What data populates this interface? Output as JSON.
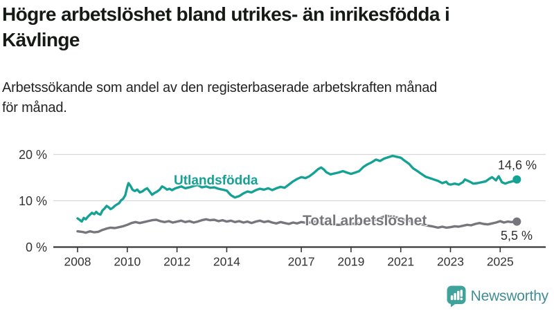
{
  "header": {
    "title_lines": [
      "Högre arbetslöshet bland utrikes- än inrikesfödda i",
      "Kävlinge"
    ],
    "subtitle_lines": [
      "Arbetssökande som andel av den registerbaserade arbetskraften månad",
      "för månad."
    ]
  },
  "chart_data": {
    "type": "line",
    "unit": "%",
    "title": "Högre arbetslöshet bland utrikes- än inrikesfödda i Kävlinge",
    "subtitle": "Arbetssökande som andel av den registerbaserade arbetskraften månad för månad.",
    "xlim": [
      2007.5,
      2026.1
    ],
    "ylim": [
      0,
      21.5
    ],
    "grid": true,
    "y_ticks": [
      {
        "label": "0 %",
        "value": 0
      },
      {
        "label": "10 %",
        "value": 10
      },
      {
        "label": "20 %",
        "value": 20
      }
    ],
    "x_ticks": [
      {
        "label": "2008",
        "year": 2008
      },
      {
        "label": "2010",
        "year": 2010
      },
      {
        "label": "2012",
        "year": 2012
      },
      {
        "label": "2014",
        "year": 2014
      },
      {
        "label": "2017",
        "year": 2017
      },
      {
        "label": "2019",
        "year": 2019
      },
      {
        "label": "2021",
        "year": 2021
      },
      {
        "label": "2023",
        "year": 2023
      },
      {
        "label": "2025",
        "year": 2025
      }
    ],
    "series": [
      {
        "name": "Utlandsfödda",
        "color": "#16a195",
        "end_label": "14,6 %",
        "end_value": 14.6,
        "points": [
          [
            2008.0,
            6.2
          ],
          [
            2008.08,
            5.9
          ],
          [
            2008.17,
            5.5
          ],
          [
            2008.25,
            6.3
          ],
          [
            2008.33,
            6.0
          ],
          [
            2008.42,
            6.6
          ],
          [
            2008.5,
            7.0
          ],
          [
            2008.58,
            7.4
          ],
          [
            2008.67,
            7.1
          ],
          [
            2008.75,
            7.6
          ],
          [
            2008.83,
            7.2
          ],
          [
            2008.92,
            7.0
          ],
          [
            2009.0,
            7.9
          ],
          [
            2009.08,
            8.3
          ],
          [
            2009.17,
            8.9
          ],
          [
            2009.25,
            8.6
          ],
          [
            2009.33,
            8.2
          ],
          [
            2009.42,
            8.5
          ],
          [
            2009.5,
            8.9
          ],
          [
            2009.58,
            9.2
          ],
          [
            2009.67,
            9.5
          ],
          [
            2009.75,
            10.1
          ],
          [
            2009.83,
            10.4
          ],
          [
            2009.92,
            11.2
          ],
          [
            2010.0,
            13.0
          ],
          [
            2010.05,
            13.8
          ],
          [
            2010.13,
            13.2
          ],
          [
            2010.21,
            12.4
          ],
          [
            2010.3,
            12.1
          ],
          [
            2010.4,
            12.4
          ],
          [
            2010.5,
            11.8
          ],
          [
            2010.6,
            12.0
          ],
          [
            2010.7,
            12.4
          ],
          [
            2010.8,
            12.7
          ],
          [
            2010.9,
            12.0
          ],
          [
            2011.0,
            11.3
          ],
          [
            2011.1,
            11.7
          ],
          [
            2011.2,
            12.0
          ],
          [
            2011.3,
            12.4
          ],
          [
            2011.4,
            13.1
          ],
          [
            2011.5,
            12.8
          ],
          [
            2011.6,
            12.4
          ],
          [
            2011.7,
            12.6
          ],
          [
            2011.8,
            12.3
          ],
          [
            2011.9,
            12.6
          ],
          [
            2012.0,
            12.8
          ],
          [
            2012.17,
            13.1
          ],
          [
            2012.33,
            12.7
          ],
          [
            2012.5,
            12.9
          ],
          [
            2012.67,
            13.2
          ],
          [
            2012.83,
            13.4
          ],
          [
            2013.0,
            12.9
          ],
          [
            2013.17,
            13.1
          ],
          [
            2013.33,
            12.8
          ],
          [
            2013.5,
            12.9
          ],
          [
            2013.67,
            12.6
          ],
          [
            2013.83,
            12.4
          ],
          [
            2014.0,
            12.2
          ],
          [
            2014.17,
            11.2
          ],
          [
            2014.33,
            10.7
          ],
          [
            2014.5,
            11.0
          ],
          [
            2014.67,
            11.6
          ],
          [
            2014.83,
            12.0
          ],
          [
            2015.0,
            11.8
          ],
          [
            2015.17,
            12.3
          ],
          [
            2015.33,
            12.6
          ],
          [
            2015.5,
            12.4
          ],
          [
            2015.67,
            12.7
          ],
          [
            2015.83,
            12.3
          ],
          [
            2016.0,
            12.7
          ],
          [
            2016.17,
            13.0
          ],
          [
            2016.33,
            12.8
          ],
          [
            2016.5,
            13.5
          ],
          [
            2016.67,
            14.2
          ],
          [
            2016.83,
            14.7
          ],
          [
            2017.0,
            15.1
          ],
          [
            2017.17,
            14.9
          ],
          [
            2017.33,
            15.3
          ],
          [
            2017.5,
            16.0
          ],
          [
            2017.67,
            16.8
          ],
          [
            2017.8,
            17.2
          ],
          [
            2017.92,
            16.7
          ],
          [
            2018.0,
            16.2
          ],
          [
            2018.17,
            15.7
          ],
          [
            2018.33,
            15.9
          ],
          [
            2018.5,
            16.1
          ],
          [
            2018.67,
            16.4
          ],
          [
            2018.83,
            16.1
          ],
          [
            2019.0,
            15.8
          ],
          [
            2019.17,
            16.1
          ],
          [
            2019.33,
            16.4
          ],
          [
            2019.5,
            17.3
          ],
          [
            2019.67,
            17.9
          ],
          [
            2019.83,
            18.3
          ],
          [
            2020.0,
            18.9
          ],
          [
            2020.17,
            18.6
          ],
          [
            2020.33,
            19.1
          ],
          [
            2020.5,
            19.4
          ],
          [
            2020.67,
            19.7
          ],
          [
            2020.83,
            19.5
          ],
          [
            2021.0,
            19.3
          ],
          [
            2021.17,
            18.6
          ],
          [
            2021.33,
            18.0
          ],
          [
            2021.5,
            17.0
          ],
          [
            2021.67,
            16.4
          ],
          [
            2021.83,
            15.8
          ],
          [
            2022.0,
            15.2
          ],
          [
            2022.17,
            14.9
          ],
          [
            2022.33,
            14.6
          ],
          [
            2022.5,
            14.3
          ],
          [
            2022.67,
            13.8
          ],
          [
            2022.83,
            14.1
          ],
          [
            2022.92,
            13.6
          ],
          [
            2023.0,
            13.5
          ],
          [
            2023.17,
            13.7
          ],
          [
            2023.33,
            13.5
          ],
          [
            2023.5,
            14.0
          ],
          [
            2023.58,
            14.6
          ],
          [
            2023.75,
            14.2
          ],
          [
            2023.92,
            13.7
          ],
          [
            2024.08,
            13.8
          ],
          [
            2024.25,
            14.0
          ],
          [
            2024.42,
            14.2
          ],
          [
            2024.58,
            14.8
          ],
          [
            2024.67,
            15.1
          ],
          [
            2024.83,
            14.4
          ],
          [
            2024.94,
            15.3
          ],
          [
            2025.07,
            14.0
          ],
          [
            2025.2,
            13.7
          ],
          [
            2025.35,
            14.0
          ],
          [
            2025.5,
            14.2
          ],
          [
            2025.67,
            14.6
          ]
        ]
      },
      {
        "name": "Total arbetslöshet",
        "color": "#76767c",
        "end_label": "5,5 %",
        "end_value": 5.5,
        "points": [
          [
            2008.0,
            3.4
          ],
          [
            2008.17,
            3.3
          ],
          [
            2008.33,
            3.1
          ],
          [
            2008.5,
            3.4
          ],
          [
            2008.67,
            3.2
          ],
          [
            2008.83,
            3.3
          ],
          [
            2009.0,
            3.7
          ],
          [
            2009.17,
            4.0
          ],
          [
            2009.33,
            4.2
          ],
          [
            2009.5,
            4.1
          ],
          [
            2009.67,
            4.3
          ],
          [
            2009.83,
            4.5
          ],
          [
            2010.0,
            4.8
          ],
          [
            2010.17,
            5.2
          ],
          [
            2010.33,
            5.4
          ],
          [
            2010.5,
            5.2
          ],
          [
            2010.67,
            5.4
          ],
          [
            2010.83,
            5.6
          ],
          [
            2011.0,
            5.8
          ],
          [
            2011.17,
            5.9
          ],
          [
            2011.33,
            5.6
          ],
          [
            2011.5,
            5.4
          ],
          [
            2011.67,
            5.6
          ],
          [
            2011.83,
            5.3
          ],
          [
            2012.0,
            5.5
          ],
          [
            2012.17,
            5.7
          ],
          [
            2012.33,
            5.4
          ],
          [
            2012.5,
            5.6
          ],
          [
            2012.67,
            5.3
          ],
          [
            2012.83,
            5.5
          ],
          [
            2013.0,
            5.8
          ],
          [
            2013.17,
            6.0
          ],
          [
            2013.33,
            5.8
          ],
          [
            2013.5,
            5.9
          ],
          [
            2013.67,
            5.6
          ],
          [
            2013.83,
            5.8
          ],
          [
            2014.0,
            5.5
          ],
          [
            2014.17,
            5.7
          ],
          [
            2014.33,
            5.4
          ],
          [
            2014.5,
            5.6
          ],
          [
            2014.67,
            5.3
          ],
          [
            2014.83,
            5.5
          ],
          [
            2015.0,
            5.2
          ],
          [
            2015.17,
            5.5
          ],
          [
            2015.33,
            5.7
          ],
          [
            2015.5,
            5.4
          ],
          [
            2015.67,
            5.6
          ],
          [
            2015.83,
            5.3
          ],
          [
            2016.0,
            5.1
          ],
          [
            2016.17,
            5.4
          ],
          [
            2016.33,
            5.2
          ],
          [
            2016.5,
            5.0
          ],
          [
            2016.67,
            5.3
          ],
          [
            2016.83,
            5.1
          ],
          [
            2017.0,
            5.4
          ],
          [
            2017.25,
            5.2
          ],
          [
            2017.5,
            5.5
          ],
          [
            2017.75,
            5.3
          ],
          [
            2018.0,
            5.1
          ],
          [
            2018.25,
            4.9
          ],
          [
            2018.5,
            4.8
          ],
          [
            2018.75,
            4.9
          ],
          [
            2019.0,
            5.0
          ],
          [
            2019.25,
            5.1
          ],
          [
            2019.5,
            5.3
          ],
          [
            2019.75,
            5.6
          ],
          [
            2020.0,
            5.9
          ],
          [
            2020.17,
            6.3
          ],
          [
            2020.33,
            6.6
          ],
          [
            2020.5,
            6.7
          ],
          [
            2020.67,
            6.6
          ],
          [
            2020.83,
            6.4
          ],
          [
            2021.0,
            6.1
          ],
          [
            2021.25,
            5.8
          ],
          [
            2021.5,
            5.4
          ],
          [
            2021.75,
            5.0
          ],
          [
            2022.0,
            4.7
          ],
          [
            2022.25,
            4.5
          ],
          [
            2022.5,
            4.2
          ],
          [
            2022.67,
            4.4
          ],
          [
            2022.83,
            4.2
          ],
          [
            2023.0,
            4.3
          ],
          [
            2023.17,
            4.5
          ],
          [
            2023.33,
            4.4
          ],
          [
            2023.5,
            4.6
          ],
          [
            2023.67,
            4.8
          ],
          [
            2023.83,
            4.7
          ],
          [
            2024.0,
            5.0
          ],
          [
            2024.17,
            5.2
          ],
          [
            2024.33,
            5.0
          ],
          [
            2024.5,
            4.9
          ],
          [
            2024.67,
            5.1
          ],
          [
            2024.83,
            5.3
          ],
          [
            2025.0,
            5.6
          ],
          [
            2025.15,
            5.3
          ],
          [
            2025.3,
            5.5
          ],
          [
            2025.45,
            5.4
          ],
          [
            2025.67,
            5.5
          ]
        ]
      }
    ]
  },
  "branding": {
    "logo_text": "Newsworthy"
  },
  "colors": {
    "grid": "#d8d8d8",
    "axis": "#37373a",
    "tick_text": "#333333",
    "title_text": "#161a16",
    "brand_icon": "#3fa39b",
    "brand_text": "#3f8e96"
  }
}
